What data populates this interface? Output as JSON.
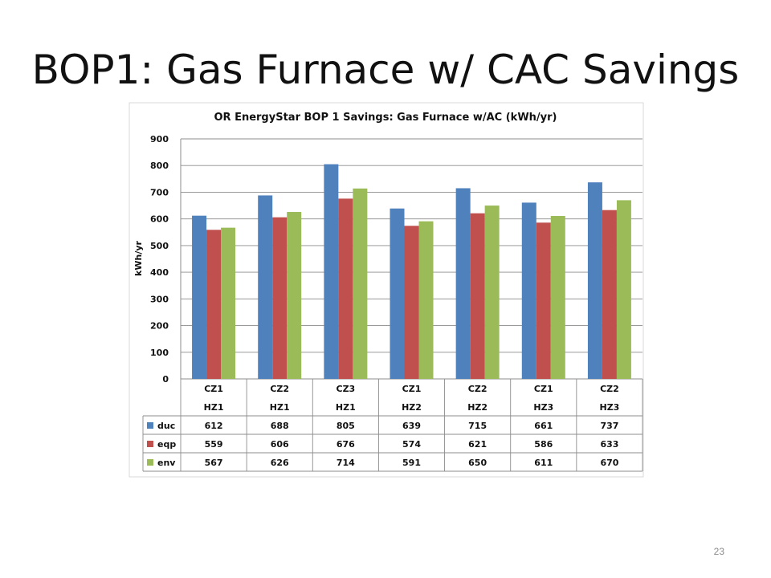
{
  "slide": {
    "title": "BOP1:  Gas Furnace w/ CAC Savings",
    "page_number": "23"
  },
  "chart_data": {
    "type": "bar",
    "title": "OR EnergyStar BOP 1 Savings:  Gas Furnace w/AC  (kWh/yr)",
    "xlabel": "",
    "ylabel": "kWh/yr",
    "ylim": [
      0,
      900
    ],
    "yticks": [
      "0",
      "100",
      "200",
      "300",
      "400",
      "500",
      "600",
      "700",
      "800",
      "900"
    ],
    "grid": true,
    "legend": "data-table",
    "categories": [
      [
        "CZ1",
        "HZ1"
      ],
      [
        "CZ2",
        "HZ1"
      ],
      [
        "CZ3",
        "HZ1"
      ],
      [
        "CZ1",
        "HZ2"
      ],
      [
        "CZ2",
        "HZ2"
      ],
      [
        "CZ1",
        "HZ3"
      ],
      [
        "CZ2",
        "HZ3"
      ]
    ],
    "series": [
      {
        "name": "duc",
        "color": "#4F81BD",
        "values": [
          612,
          688,
          805,
          639,
          715,
          661,
          737
        ]
      },
      {
        "name": "eqp",
        "color": "#C0504D",
        "values": [
          559,
          606,
          676,
          574,
          621,
          586,
          633
        ]
      },
      {
        "name": "env",
        "color": "#9BBB59",
        "values": [
          567,
          626,
          714,
          591,
          650,
          611,
          670
        ]
      }
    ]
  }
}
